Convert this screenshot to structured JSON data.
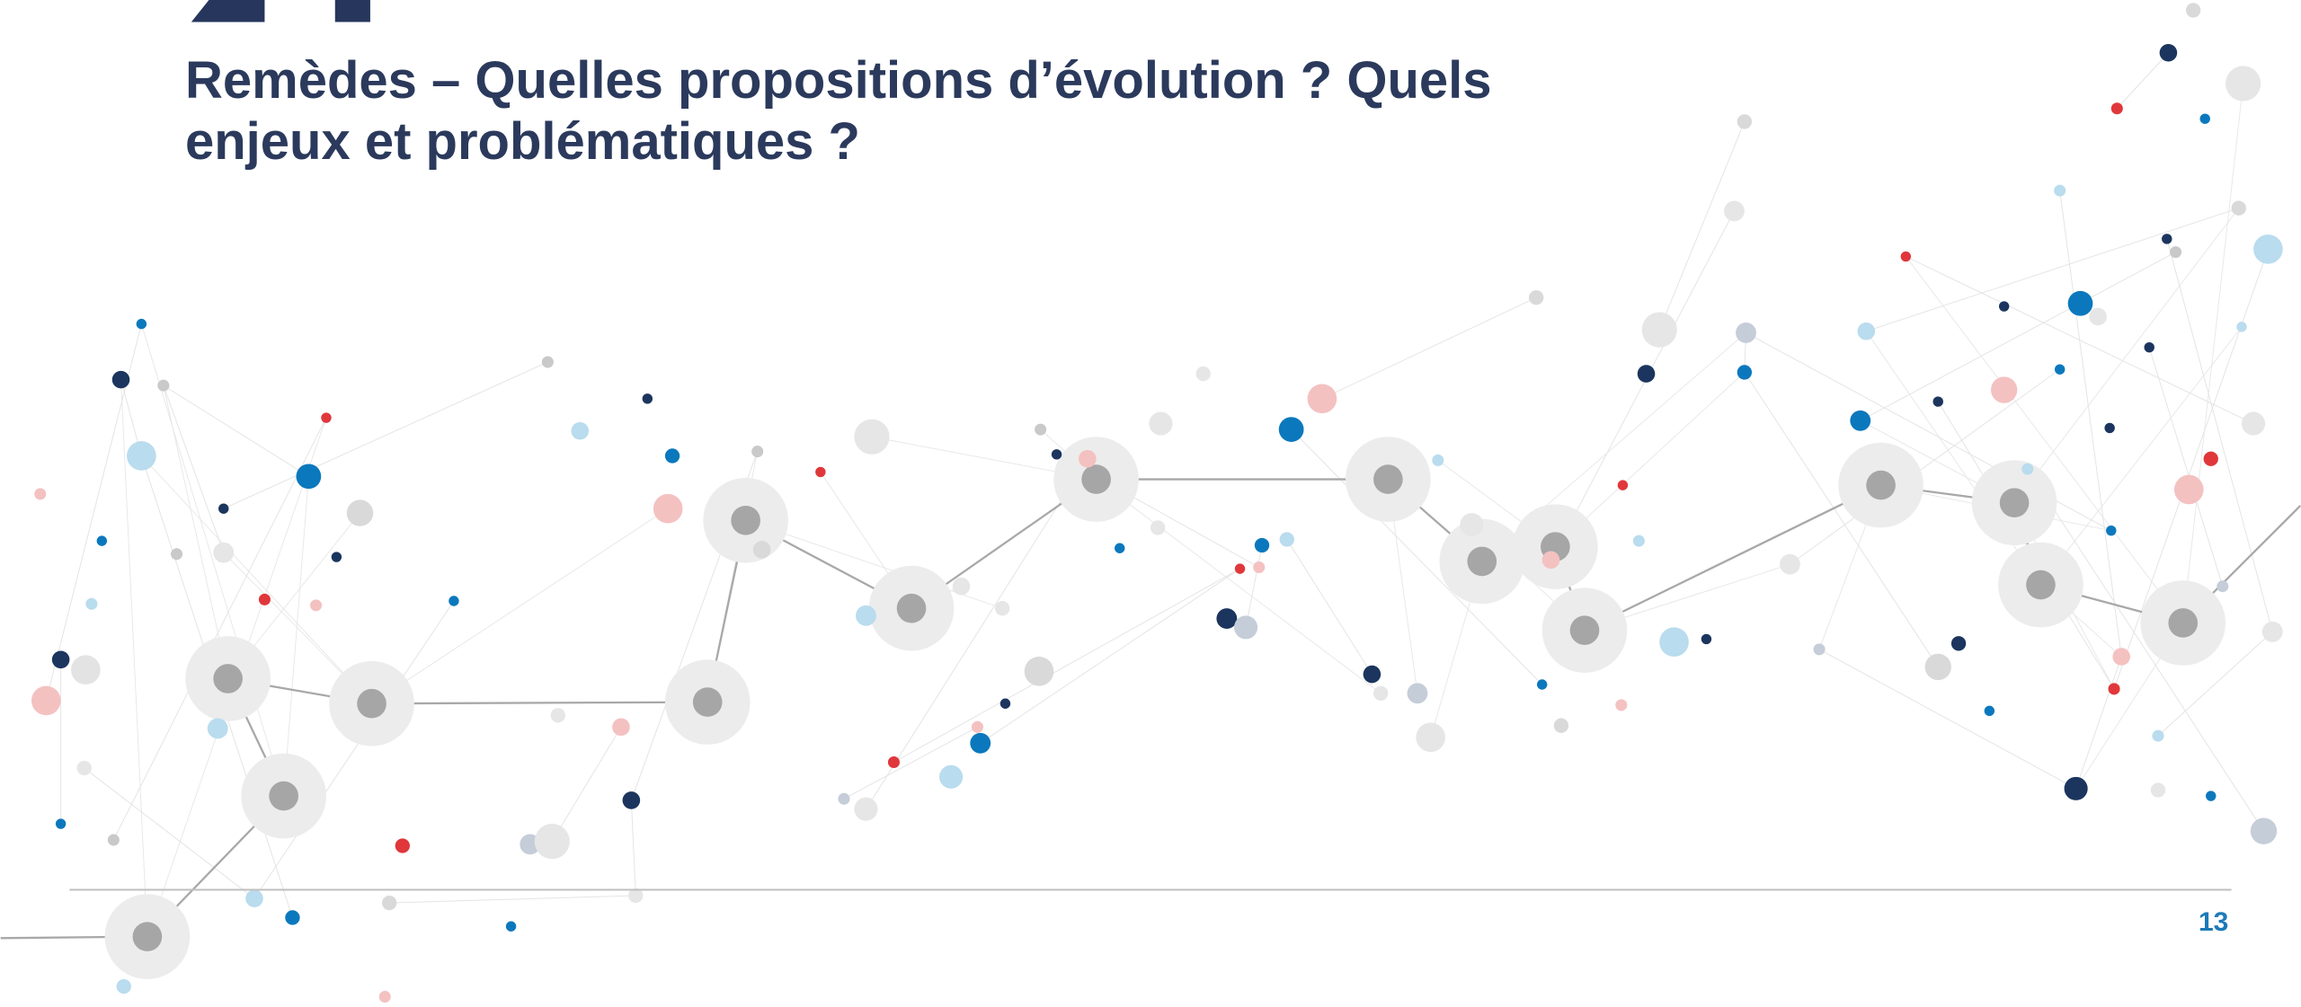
{
  "title": "Remèdes – Quelles propositions d’évolution ? Quels enjeux et problématiques ?",
  "page_number": "13"
}
